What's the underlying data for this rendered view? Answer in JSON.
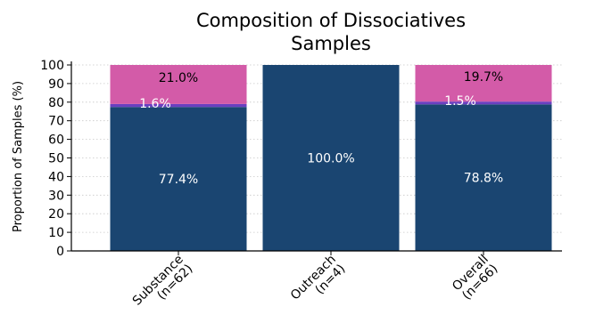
{
  "chart_data": {
    "type": "bar",
    "stacked": true,
    "title_lines": [
      "Composition of Dissociatives",
      "Samples"
    ],
    "xlabel": "",
    "ylabel": "Proportion of Samples (%)",
    "ylim": [
      0,
      100
    ],
    "yticks": [
      0,
      10,
      20,
      30,
      40,
      50,
      60,
      70,
      80,
      90,
      100
    ],
    "grid": "horizontal dotted",
    "legend": "none",
    "categories": [
      {
        "label": "Substance",
        "n_label": "(n=62)"
      },
      {
        "label": "Outreach",
        "n_label": "(n=4)"
      },
      {
        "label": "Overall",
        "n_label": "(n=66)"
      }
    ],
    "series": [
      {
        "color": "#1a4571",
        "values": [
          77.4,
          100.0,
          78.8
        ],
        "labels": [
          "77.4%",
          "100.0%",
          "78.8%"
        ],
        "label_color": "#ffffff"
      },
      {
        "color": "#6a3fc0",
        "values": [
          1.6,
          0.0,
          1.5
        ],
        "labels": [
          "1.6%",
          "",
          "1.5%"
        ],
        "label_color": "#ffffff"
      },
      {
        "color": "#d35ba8",
        "values": [
          21.0,
          0.0,
          19.7
        ],
        "labels": [
          "21.0%",
          "",
          "19.7%"
        ],
        "label_color": "#000000"
      }
    ]
  }
}
